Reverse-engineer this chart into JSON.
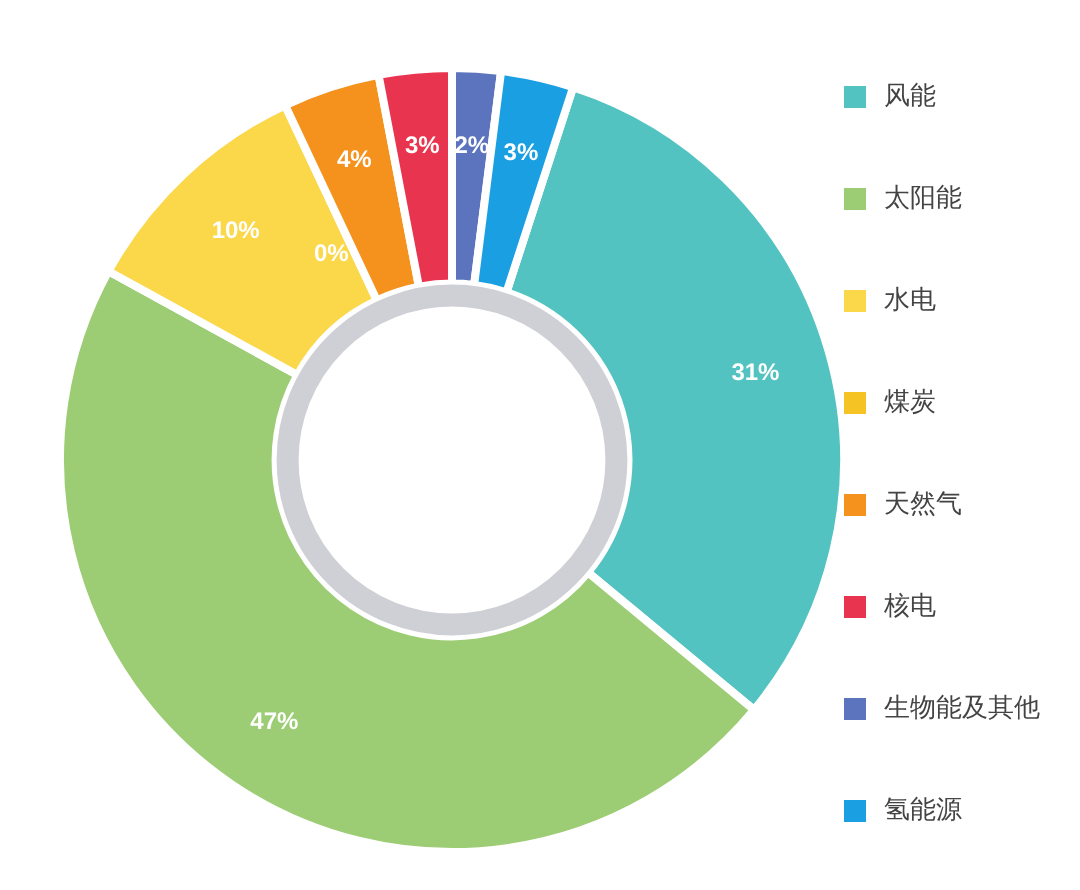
{
  "chart_data": {
    "type": "donut",
    "categories": [
      "风能",
      "太阳能",
      "水电",
      "煤炭",
      "天然气",
      "核电",
      "生物能及其他",
      "氢能源"
    ],
    "values": [
      31,
      47,
      10,
      0,
      4,
      3,
      2,
      3
    ],
    "colors": [
      "#52c3c1",
      "#9ccc74",
      "#fbd74a",
      "#f6c324",
      "#f5921e",
      "#e8344e",
      "#5b74bd",
      "#1a9fe3"
    ],
    "value_labels": [
      "31%",
      "47%",
      "10%",
      "0%",
      "4%",
      "3%",
      "2%",
      "3%"
    ],
    "legend": "right"
  }
}
